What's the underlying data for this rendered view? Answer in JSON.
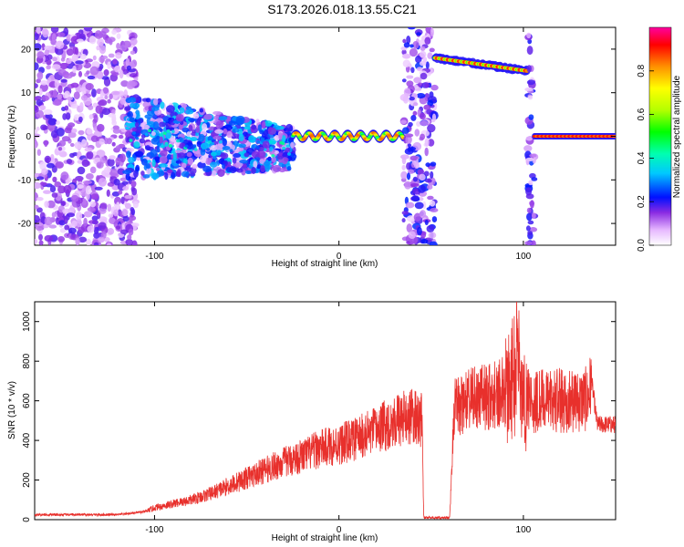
{
  "title": "S173.2026.018.13.55.C21",
  "colors": {
    "snr_line": "#e8302c",
    "background": "#ffffff",
    "axis": "#000000"
  },
  "chart_data": [
    {
      "type": "heatmap",
      "title": "S173.2026.018.13.55.C21",
      "xlabel": "Height of straight line (km)",
      "ylabel": "Frequency (Hz)",
      "xlim": [
        -165,
        150
      ],
      "ylim": [
        -25,
        25
      ],
      "xticks": [
        -100,
        0,
        100
      ],
      "xtick_labels": [
        "-100",
        "0",
        "100"
      ],
      "yticks": [
        -20,
        -10,
        0,
        10,
        20
      ],
      "ytick_labels": [
        "-20",
        "-10",
        "0",
        "10",
        "20"
      ],
      "colorbar": {
        "label": "Normalized spectral amplitude",
        "range": [
          0.0,
          1.0
        ],
        "ticks": [
          0.0,
          0.2,
          0.4,
          0.6,
          0.8
        ],
        "tick_labels": [
          "0.0",
          "0.2",
          "0.4",
          "0.6",
          "0.8"
        ],
        "colormap": "rainbow (white-purple-blue-cyan-green-yellow-red)"
      },
      "features": [
        {
          "name": "noise-scatter",
          "x_range": [
            -165,
            -110
          ],
          "f_range": [
            -25,
            25
          ],
          "amplitude": 0.15
        },
        {
          "name": "broad-band",
          "x_range": [
            -115,
            -25
          ],
          "f_center": 0,
          "f_halfwidth": 6,
          "amplitude": 0.3
        },
        {
          "name": "narrow-line",
          "x_range": [
            -25,
            35
          ],
          "f_center": 0,
          "amplitude": 0.8
        },
        {
          "name": "noise-column",
          "x_range": [
            35,
            52
          ],
          "f_range": [
            -25,
            25
          ],
          "amplitude": 0.2
        },
        {
          "name": "upper-line",
          "x_range": [
            52,
            102
          ],
          "f_start": 18,
          "f_end": 15,
          "amplitude": 0.9
        },
        {
          "name": "noise-column",
          "x_range": [
            102,
            106
          ],
          "f_range": [
            -25,
            25
          ],
          "amplitude": 0.2
        },
        {
          "name": "zero-line",
          "x_range": [
            106,
            150
          ],
          "f_center": 0,
          "amplitude": 1.0
        }
      ]
    },
    {
      "type": "line",
      "xlabel": "Height of straight line (km)",
      "ylabel": "SNR (10 * v/v)",
      "xlim": [
        -165,
        150
      ],
      "ylim": [
        0,
        1100
      ],
      "xticks": [
        -100,
        0,
        100
      ],
      "xtick_labels": [
        "-100",
        "0",
        "100"
      ],
      "yticks": [
        0,
        200,
        400,
        600,
        800,
        1000
      ],
      "ytick_labels": [
        "0",
        "200",
        "400",
        "600",
        "800",
        "1000"
      ],
      "series": [
        {
          "name": "SNR",
          "x": [
            -165,
            -140,
            -120,
            -105,
            -100,
            -90,
            -80,
            -70,
            -60,
            -50,
            -40,
            -30,
            -20,
            -10,
            0,
            10,
            20,
            30,
            40,
            45,
            46,
            60,
            62,
            63,
            65,
            70,
            80,
            90,
            95,
            97,
            99,
            100,
            105,
            110,
            120,
            130,
            135,
            137,
            140,
            145,
            150
          ],
          "values": [
            25,
            25,
            25,
            40,
            60,
            80,
            100,
            130,
            170,
            210,
            250,
            290,
            320,
            360,
            380,
            410,
            450,
            500,
            520,
            500,
            10,
            10,
            430,
            560,
            580,
            600,
            620,
            650,
            720,
            900,
            600,
            620,
            600,
            600,
            600,
            600,
            610,
            700,
            480,
            480,
            480
          ]
        }
      ]
    }
  ]
}
